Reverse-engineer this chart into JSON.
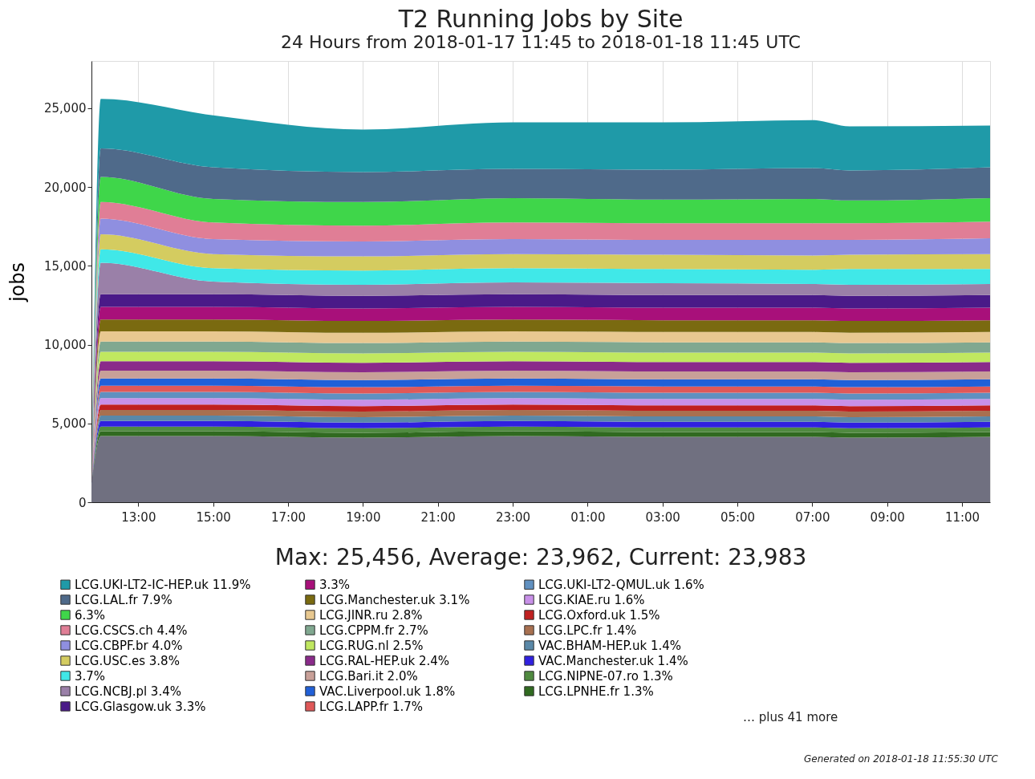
{
  "chart_data": {
    "type": "area",
    "stacked": true,
    "title": "T2 Running Jobs by Site",
    "subtitle": "24 Hours from 2018-01-17 11:45 to 2018-01-18 11:45 UTC",
    "ylabel": "jobs",
    "x": [
      "2018-01-17T11:45",
      "2018-01-17T12:00",
      "2018-01-17T15:00",
      "2018-01-17T19:00",
      "2018-01-17T23:00",
      "2018-01-18T03:00",
      "2018-01-18T07:00",
      "2018-01-18T08:00",
      "2018-01-18T11:45"
    ],
    "xlim": [
      "2018-01-17T11:45",
      "2018-01-18T11:45"
    ],
    "xticks": [
      {
        "value": "2018-01-17T13:00",
        "label": "13:00"
      },
      {
        "value": "2018-01-17T15:00",
        "label": "15:00"
      },
      {
        "value": "2018-01-17T17:00",
        "label": "17:00"
      },
      {
        "value": "2018-01-17T19:00",
        "label": "19:00"
      },
      {
        "value": "2018-01-17T21:00",
        "label": "21:00"
      },
      {
        "value": "2018-01-17T23:00",
        "label": "23:00"
      },
      {
        "value": "2018-01-18T01:00",
        "label": "01:00"
      },
      {
        "value": "2018-01-18T03:00",
        "label": "03:00"
      },
      {
        "value": "2018-01-18T05:00",
        "label": "05:00"
      },
      {
        "value": "2018-01-18T07:00",
        "label": "07:00"
      },
      {
        "value": "2018-01-18T09:00",
        "label": "09:00"
      },
      {
        "value": "2018-01-18T11:00",
        "label": "11:00"
      }
    ],
    "ylim": [
      0,
      28000
    ],
    "yticks": [
      0,
      {
        "value": 5000,
        "label": "5,000"
      },
      {
        "value": 10000,
        "label": "10,000"
      },
      {
        "value": 15000,
        "label": "15,000"
      },
      {
        "value": 20000,
        "label": "20,000"
      },
      {
        "value": 25000,
        "label": "25,000"
      }
    ],
    "grid": "x",
    "legend": "bottom",
    "series": [
      {
        "color": "#707080",
        "values": [
          1200,
          4200,
          4200,
          4100,
          4200,
          4150,
          4150,
          4100,
          4150
        ]
      },
      {
        "name": "LCG.LPNHE.fr  1.3%",
        "color": "#306a20",
        "values": [
          0,
          300,
          300,
          300,
          300,
          300,
          300,
          300,
          300
        ]
      },
      {
        "name": "LCG.NIPNE-07.ro  1.3%",
        "color": "#508a40",
        "values": [
          0,
          300,
          300,
          300,
          300,
          300,
          300,
          300,
          300
        ]
      },
      {
        "name": "VAC.Manchester.uk  1.4%",
        "color": "#3020e0",
        "values": [
          0,
          350,
          350,
          350,
          350,
          350,
          350,
          350,
          350
        ]
      },
      {
        "name": "VAC.BHAM-HEP.uk  1.4%",
        "color": "#5a88a8",
        "values": [
          0,
          350,
          350,
          350,
          350,
          350,
          350,
          350,
          350
        ]
      },
      {
        "name": "LCG.LPC.fr  1.4%",
        "color": "#a87050",
        "values": [
          0,
          350,
          350,
          350,
          350,
          350,
          350,
          350,
          350
        ]
      },
      {
        "name": "LCG.Oxford.uk  1.5%",
        "color": "#c02020",
        "values": [
          0,
          350,
          350,
          350,
          350,
          350,
          350,
          350,
          350
        ]
      },
      {
        "name": "LCG.KIAE.ru  1.6%",
        "color": "#c890e8",
        "values": [
          0,
          400,
          400,
          400,
          400,
          400,
          400,
          400,
          400
        ]
      },
      {
        "name": "LCG.UKI-LT2-QMUL.uk  1.6%",
        "color": "#6090c0",
        "values": [
          0,
          400,
          400,
          400,
          400,
          400,
          400,
          400,
          400
        ]
      },
      {
        "name": "LCG.LAPP.fr  1.7%",
        "color": "#e05858",
        "values": [
          0,
          400,
          400,
          400,
          400,
          400,
          400,
          400,
          400
        ]
      },
      {
        "name": "VAC.Liverpool.uk  1.8%",
        "color": "#2060d8",
        "values": [
          0,
          450,
          450,
          450,
          450,
          450,
          450,
          450,
          450
        ]
      },
      {
        "name": "LCG.Bari.it  2.0%",
        "color": "#c8a098",
        "values": [
          0,
          500,
          500,
          500,
          500,
          500,
          500,
          500,
          500
        ]
      },
      {
        "name": "LCG.RAL-HEP.uk  2.4%",
        "color": "#8a2a8a",
        "values": [
          0,
          600,
          600,
          600,
          600,
          600,
          600,
          600,
          600
        ]
      },
      {
        "name": "LCG.RUG.nl  2.5%",
        "color": "#c0e860",
        "values": [
          0,
          600,
          600,
          600,
          600,
          600,
          600,
          600,
          600
        ]
      },
      {
        "name": "LCG.CPPM.fr  2.7%",
        "color": "#80a890",
        "values": [
          0,
          650,
          650,
          650,
          650,
          650,
          650,
          650,
          650
        ]
      },
      {
        "name": "LCG.JINR.ru  2.8%",
        "color": "#e8c890",
        "values": [
          0,
          650,
          650,
          650,
          650,
          650,
          650,
          650,
          650
        ]
      },
      {
        "name": "LCG.Manchester.uk  3.1%",
        "color": "#7a6a10",
        "values": [
          0,
          750,
          750,
          750,
          750,
          750,
          750,
          750,
          750
        ]
      },
      {
        "name": "3.3%",
        "color": "#a8107a",
        "values": [
          0,
          800,
          800,
          800,
          800,
          800,
          800,
          800,
          800
        ]
      },
      {
        "name": "LCG.Glasgow.uk  3.3%",
        "color": "#4a1a88",
        "values": [
          0,
          800,
          800,
          800,
          800,
          800,
          800,
          800,
          800
        ]
      },
      {
        "name": "LCG.NCBJ.pl  3.4%",
        "color": "#9a80a8",
        "values": [
          0,
          2000,
          800,
          700,
          750,
          750,
          700,
          700,
          700
        ]
      },
      {
        "name": "3.7%",
        "color": "#40e8e8",
        "values": [
          0,
          850,
          850,
          900,
          900,
          900,
          900,
          1000,
          950
        ]
      },
      {
        "name": "LCG.USC.es  3.8%",
        "color": "#d4cc60",
        "values": [
          0,
          950,
          900,
          900,
          900,
          900,
          900,
          900,
          950
        ]
      },
      {
        "name": "LCG.CBPF.br  4.0%",
        "color": "#8f8fe0",
        "values": [
          0,
          1000,
          950,
          950,
          950,
          950,
          1000,
          950,
          1000
        ]
      },
      {
        "name": "LCG.CSCS.ch  4.4%",
        "color": "#e07e96",
        "values": [
          0,
          1050,
          1050,
          1000,
          1050,
          1050,
          1050,
          1050,
          1050
        ]
      },
      {
        "name": "6.3%",
        "color": "#3fd64a",
        "values": [
          0,
          1600,
          1500,
          1500,
          1550,
          1500,
          1550,
          1450,
          1500
        ]
      },
      {
        "name": "LCG.LAL.fr  7.9%",
        "color": "#4f6a8a",
        "values": [
          0,
          1800,
          2000,
          1900,
          1850,
          1900,
          1950,
          1900,
          1950
        ]
      },
      {
        "name": "LCG.UKI-LT2-IC-HEP.uk  11.9%",
        "color": "#1f9aa8",
        "values": [
          0,
          3150,
          3300,
          2700,
          2950,
          3000,
          3050,
          2800,
          2650
        ]
      }
    ],
    "annotations": [
      "Max: 25,456, Average: 23,962, Current: 23,983",
      "… plus 41 more",
      "Generated on 2018-01-18 11:55:30 UTC"
    ]
  }
}
